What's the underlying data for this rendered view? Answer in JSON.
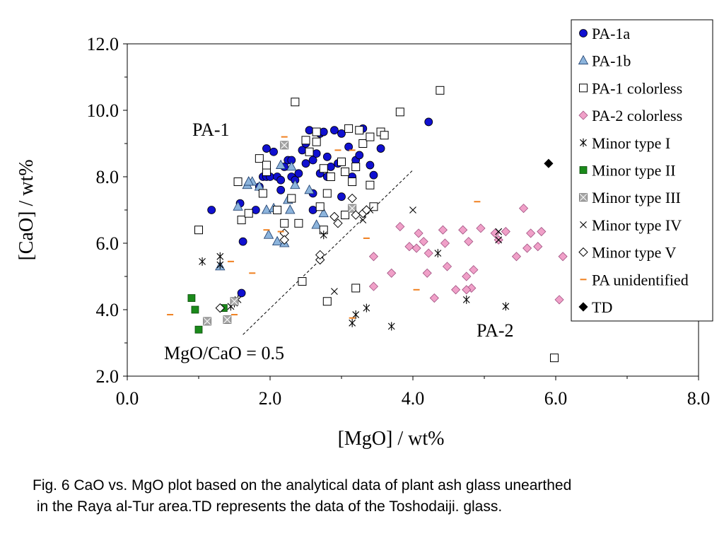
{
  "chart_data": {
    "type": "scatter",
    "xlabel": "[MgO] / wt%",
    "ylabel": "[CaO] / wt%",
    "xlim": [
      0,
      8
    ],
    "ylim": [
      2,
      12
    ],
    "x_ticks": [
      "0.0",
      "2.0",
      "4.0",
      "6.0",
      "8.0"
    ],
    "y_ticks": [
      "2.0",
      "4.0",
      "6.0",
      "8.0",
      "10.0",
      "12.0"
    ],
    "grid": false,
    "legend_position": "top-right",
    "annotations": {
      "pa1": "PA-1",
      "pa2": "PA-2",
      "ratio_line": "MgO/CaO = 0.5"
    },
    "reference_line": {
      "x": [
        1.62,
        4.0
      ],
      "y": [
        3.25,
        8.2
      ]
    },
    "series": [
      {
        "name": "PA-1a",
        "marker": "circle",
        "color": "#1010d0",
        "points": [
          [
            1.18,
            7.0
          ],
          [
            1.62,
            6.05
          ],
          [
            1.6,
            4.5
          ],
          [
            1.58,
            7.2
          ],
          [
            1.8,
            7.0
          ],
          [
            1.85,
            7.7
          ],
          [
            1.9,
            8.0
          ],
          [
            1.95,
            8.0
          ],
          [
            2.0,
            8.0
          ],
          [
            2.05,
            8.75
          ],
          [
            1.95,
            8.85
          ],
          [
            2.1,
            8.0
          ],
          [
            2.15,
            7.9
          ],
          [
            2.2,
            8.3
          ],
          [
            2.25,
            8.5
          ],
          [
            2.3,
            8.0
          ],
          [
            2.35,
            7.9
          ],
          [
            2.4,
            8.1
          ],
          [
            2.45,
            8.8
          ],
          [
            2.5,
            9.0
          ],
          [
            2.5,
            8.4
          ],
          [
            2.55,
            9.4
          ],
          [
            2.6,
            8.5
          ],
          [
            2.6,
            7.5
          ],
          [
            2.65,
            8.7
          ],
          [
            2.7,
            9.3
          ],
          [
            2.7,
            8.1
          ],
          [
            2.75,
            9.35
          ],
          [
            2.8,
            8.6
          ],
          [
            2.8,
            8.0
          ],
          [
            2.85,
            8.3
          ],
          [
            2.9,
            9.4
          ],
          [
            2.95,
            8.4
          ],
          [
            3.0,
            9.3
          ],
          [
            3.1,
            8.9
          ],
          [
            3.15,
            8.0
          ],
          [
            3.2,
            8.5
          ],
          [
            3.25,
            8.65
          ],
          [
            3.3,
            9.45
          ],
          [
            3.4,
            8.35
          ],
          [
            3.45,
            8.05
          ],
          [
            3.55,
            8.85
          ],
          [
            4.22,
            9.65
          ],
          [
            2.6,
            7.0
          ],
          [
            3.0,
            7.4
          ],
          [
            2.3,
            8.5
          ],
          [
            2.15,
            7.6
          ]
        ]
      },
      {
        "name": "PA-1b",
        "marker": "triangle",
        "color": "#8cb4dc",
        "points": [
          [
            1.3,
            5.3
          ],
          [
            1.55,
            7.1
          ],
          [
            1.68,
            7.75
          ],
          [
            1.7,
            7.85
          ],
          [
            1.75,
            7.85
          ],
          [
            1.85,
            7.7
          ],
          [
            1.95,
            7.0
          ],
          [
            1.98,
            6.25
          ],
          [
            2.05,
            7.05
          ],
          [
            2.1,
            6.05
          ],
          [
            2.15,
            8.35
          ],
          [
            2.2,
            6.0
          ],
          [
            2.25,
            7.3
          ],
          [
            2.28,
            7.0
          ],
          [
            2.3,
            8.3
          ],
          [
            2.35,
            7.75
          ],
          [
            2.55,
            7.6
          ],
          [
            2.65,
            6.55
          ],
          [
            2.75,
            6.9
          ],
          [
            1.7,
            7.85
          ]
        ]
      },
      {
        "name": "PA-1 colorless",
        "marker": "square-open",
        "color": "#000000",
        "points": [
          [
            1.0,
            6.4
          ],
          [
            1.55,
            7.85
          ],
          [
            1.6,
            6.7
          ],
          [
            1.7,
            6.9
          ],
          [
            1.85,
            8.55
          ],
          [
            1.9,
            7.5
          ],
          [
            1.95,
            8.15
          ],
          [
            2.1,
            7.0
          ],
          [
            2.2,
            6.6
          ],
          [
            2.3,
            7.35
          ],
          [
            2.35,
            10.25
          ],
          [
            2.4,
            6.6
          ],
          [
            2.45,
            4.85
          ],
          [
            2.5,
            9.1
          ],
          [
            2.55,
            8.75
          ],
          [
            2.65,
            9.35
          ],
          [
            2.7,
            7.1
          ],
          [
            2.75,
            8.25
          ],
          [
            2.75,
            6.4
          ],
          [
            2.8,
            7.5
          ],
          [
            2.8,
            4.25
          ],
          [
            2.85,
            8.0
          ],
          [
            3.0,
            8.45
          ],
          [
            3.05,
            8.15
          ],
          [
            3.1,
            9.45
          ],
          [
            3.15,
            7.85
          ],
          [
            3.2,
            8.3
          ],
          [
            3.2,
            4.65
          ],
          [
            3.25,
            9.4
          ],
          [
            3.3,
            9.0
          ],
          [
            3.4,
            9.2
          ],
          [
            3.4,
            7.75
          ],
          [
            3.45,
            7.1
          ],
          [
            3.55,
            9.35
          ],
          [
            3.6,
            9.25
          ],
          [
            3.82,
            9.95
          ],
          [
            4.38,
            10.6
          ],
          [
            5.98,
            2.55
          ],
          [
            3.05,
            6.85
          ],
          [
            2.65,
            9.05
          ],
          [
            1.95,
            8.35
          ]
        ]
      },
      {
        "name": "PA-2 colorless",
        "marker": "diamond",
        "color": "#f0a0c8",
        "points": [
          [
            3.45,
            4.7
          ],
          [
            3.45,
            5.6
          ],
          [
            3.7,
            5.1
          ],
          [
            3.82,
            6.5
          ],
          [
            3.95,
            5.9
          ],
          [
            4.05,
            5.85
          ],
          [
            4.08,
            6.3
          ],
          [
            4.15,
            6.05
          ],
          [
            4.2,
            5.1
          ],
          [
            4.22,
            5.7
          ],
          [
            4.3,
            4.35
          ],
          [
            4.42,
            6.4
          ],
          [
            4.45,
            6.0
          ],
          [
            4.48,
            5.3
          ],
          [
            4.7,
            6.4
          ],
          [
            4.75,
            5.0
          ],
          [
            4.78,
            6.05
          ],
          [
            4.82,
            4.65
          ],
          [
            4.85,
            5.2
          ],
          [
            4.95,
            6.45
          ],
          [
            5.15,
            6.3
          ],
          [
            5.2,
            6.1
          ],
          [
            5.3,
            6.35
          ],
          [
            5.45,
            5.6
          ],
          [
            5.55,
            7.05
          ],
          [
            5.6,
            5.85
          ],
          [
            5.65,
            6.3
          ],
          [
            5.75,
            5.9
          ],
          [
            5.8,
            6.35
          ],
          [
            6.05,
            4.3
          ],
          [
            6.1,
            5.6
          ],
          [
            4.6,
            4.6
          ],
          [
            4.75,
            4.6
          ]
        ]
      },
      {
        "name": "Minor type I",
        "marker": "asterisk",
        "color": "#000000",
        "points": [
          [
            1.05,
            5.45
          ],
          [
            1.3,
            5.6
          ],
          [
            1.3,
            5.35
          ],
          [
            1.45,
            4.1
          ],
          [
            1.5,
            4.2
          ],
          [
            1.55,
            4.3
          ],
          [
            2.75,
            6.25
          ],
          [
            3.15,
            3.6
          ],
          [
            3.2,
            3.85
          ],
          [
            3.35,
            4.05
          ],
          [
            3.7,
            3.5
          ],
          [
            4.35,
            5.7
          ],
          [
            4.75,
            4.3
          ],
          [
            5.3,
            4.1
          ]
        ]
      },
      {
        "name": "Minor type II",
        "marker": "square",
        "color": "#1a8a1a",
        "points": [
          [
            0.9,
            4.35
          ],
          [
            0.95,
            4.0
          ],
          [
            1.0,
            3.4
          ],
          [
            1.35,
            4.05
          ]
        ]
      },
      {
        "name": "Minor type III",
        "marker": "square-cross",
        "color": "#a8a8a8",
        "points": [
          [
            1.12,
            3.65
          ],
          [
            1.4,
            3.7
          ],
          [
            1.5,
            4.25
          ],
          [
            2.2,
            8.95
          ],
          [
            3.15,
            7.05
          ]
        ]
      },
      {
        "name": "Minor type IV",
        "marker": "x",
        "color": "#000000",
        "points": [
          [
            2.9,
            4.55
          ],
          [
            3.3,
            6.7
          ],
          [
            3.4,
            7.0
          ],
          [
            4.0,
            7.0
          ],
          [
            5.2,
            6.35
          ],
          [
            5.2,
            6.1
          ]
        ]
      },
      {
        "name": "Minor type V",
        "marker": "diamond-open",
        "color": "#000000",
        "points": [
          [
            1.3,
            4.05
          ],
          [
            2.2,
            6.3
          ],
          [
            2.2,
            6.1
          ],
          [
            2.7,
            5.5
          ],
          [
            2.7,
            5.65
          ],
          [
            2.9,
            6.8
          ],
          [
            2.95,
            6.6
          ],
          [
            3.15,
            7.35
          ],
          [
            3.2,
            6.85
          ],
          [
            3.3,
            6.9
          ],
          [
            3.35,
            7.0
          ]
        ]
      },
      {
        "name": "PA unidentified",
        "marker": "dash",
        "color": "#f08020",
        "points": [
          [
            0.6,
            3.85
          ],
          [
            1.45,
            5.45
          ],
          [
            1.5,
            3.85
          ],
          [
            1.75,
            5.1
          ],
          [
            1.95,
            6.4
          ],
          [
            2.15,
            6.35
          ],
          [
            2.2,
            9.2
          ],
          [
            3.15,
            8.8
          ],
          [
            3.35,
            6.15
          ],
          [
            3.15,
            3.75
          ],
          [
            4.05,
            4.6
          ],
          [
            4.9,
            7.25
          ],
          [
            2.95,
            8.8
          ]
        ]
      },
      {
        "name": "TD",
        "marker": "diamond",
        "color": "#000000",
        "points": [
          [
            5.9,
            8.4
          ]
        ]
      }
    ]
  },
  "caption": {
    "line1": "Fig. 6 CaO vs. MgO plot based on the analytical data of plant ash glass unearthed",
    "line2": " in the Raya al-Tur area.TD represents the data of the Toshodaiji. glass."
  }
}
